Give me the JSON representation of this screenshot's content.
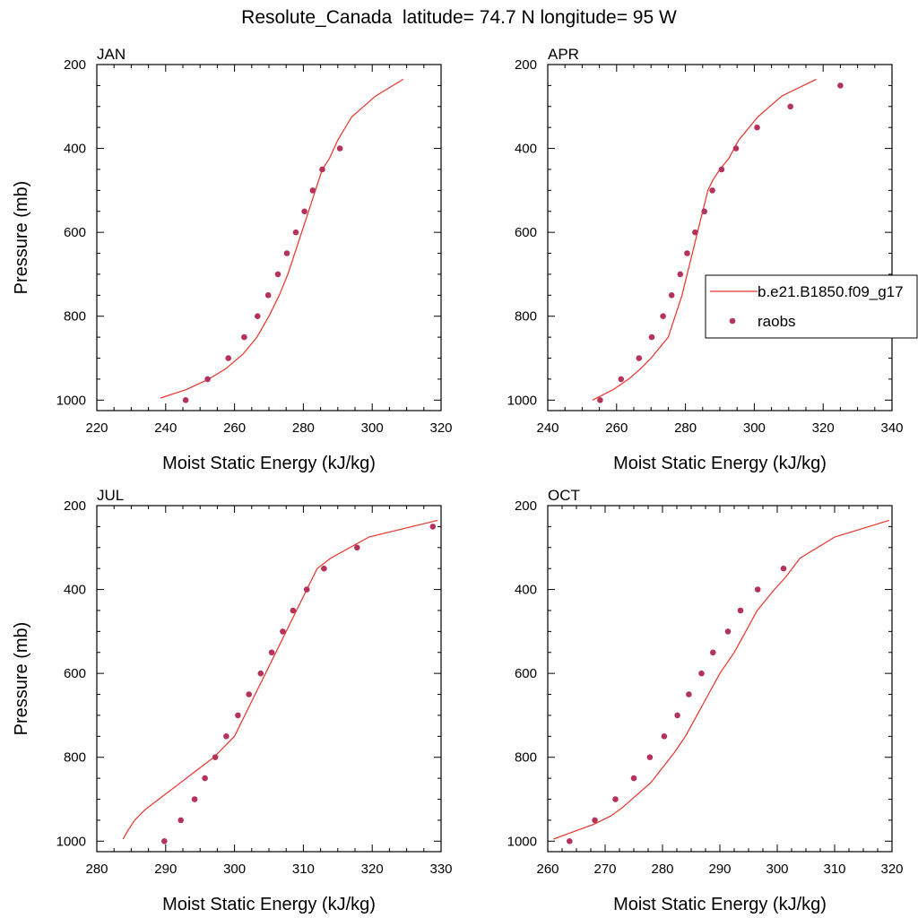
{
  "figure_title": "Resolute_Canada  latitude= 74.7 N longitude= 95 W",
  "colors": {
    "model_line": "#e8322a",
    "raobs_marker": "#b5335a",
    "axis": "#000000"
  },
  "legend": {
    "entries": [
      {
        "label": "b.e21.B1850.f09_g17",
        "kind": "line"
      },
      {
        "label": "raobs",
        "kind": "marker"
      }
    ]
  },
  "chart_data": [
    {
      "type": "line+scatter",
      "panel_title": "JAN",
      "xlabel": "Moist Static Energy (kJ/kg)",
      "ylabel": "Pressure (mb)",
      "xlim": [
        220,
        320
      ],
      "ylim": [
        1025,
        200
      ],
      "xticks": [
        220,
        240,
        260,
        280,
        300,
        320
      ],
      "yticks": [
        200,
        400,
        600,
        800,
        1000
      ],
      "series": [
        {
          "name": "b.e21.B1850.f09_g17",
          "kind": "line",
          "x": [
            238.5,
            246,
            252.5,
            257.5,
            262.5,
            266.5,
            270,
            273,
            275.5,
            277.5,
            279.5,
            281.5,
            283.5,
            285.5,
            287.5,
            290,
            294,
            301,
            309
          ],
          "y": [
            995,
            975,
            950,
            925,
            890,
            850,
            800,
            750,
            700,
            650,
            600,
            550,
            500,
            450,
            425,
            380,
            325,
            275,
            235
          ]
        },
        {
          "name": "raobs",
          "kind": "scatter",
          "x": [
            245.8,
            252.2,
            258.2,
            262.8,
            266.7,
            269.8,
            272.6,
            275.2,
            277.8,
            280.3,
            282.7,
            285.5,
            290.6
          ],
          "y": [
            1000,
            950,
            900,
            850,
            800,
            750,
            700,
            650,
            600,
            550,
            500,
            450,
            400
          ]
        }
      ]
    },
    {
      "type": "line+scatter",
      "panel_title": "APR",
      "xlabel": "Moist Static Energy (kJ/kg)",
      "ylabel": "",
      "xlim": [
        240,
        340
      ],
      "ylim": [
        1025,
        200
      ],
      "xticks": [
        240,
        260,
        280,
        300,
        320,
        340
      ],
      "yticks": [
        200,
        400,
        600,
        800,
        1000
      ],
      "series": [
        {
          "name": "b.e21.B1850.f09_g17",
          "kind": "line",
          "x": [
            253,
            259,
            263.5,
            267,
            270,
            272.5,
            275,
            277,
            279,
            280.5,
            282,
            283.5,
            285,
            286.5,
            288,
            290,
            292.5,
            295.5,
            301,
            308,
            318
          ],
          "y": [
            1000,
            975,
            950,
            925,
            900,
            875,
            850,
            800,
            750,
            700,
            650,
            600,
            550,
            500,
            475,
            450,
            425,
            380,
            325,
            275,
            235
          ]
        },
        {
          "name": "raobs",
          "kind": "scatter",
          "x": [
            255.2,
            261.3,
            266.5,
            270.2,
            273.5,
            276,
            278.5,
            280.5,
            282.8,
            285.5,
            287.8,
            290.5,
            294.7,
            300.8,
            310.5,
            325
          ],
          "y": [
            1000,
            950,
            900,
            850,
            800,
            750,
            700,
            650,
            600,
            550,
            500,
            450,
            400,
            350,
            300,
            250
          ]
        }
      ]
    },
    {
      "type": "line+scatter",
      "panel_title": "JUL",
      "xlabel": "Moist Static Energy (kJ/kg)",
      "ylabel": "Pressure (mb)",
      "xlim": [
        280,
        330
      ],
      "ylim": [
        1025,
        200
      ],
      "xticks": [
        280,
        290,
        300,
        310,
        320,
        330
      ],
      "yticks": [
        200,
        400,
        600,
        800,
        1000
      ],
      "series": [
        {
          "name": "b.e21.B1850.f09_g17",
          "kind": "line",
          "x": [
            283.8,
            284.5,
            285.5,
            287,
            289,
            291,
            293,
            295,
            297,
            298.5,
            300,
            301.5,
            303,
            304.5,
            306,
            307.5,
            309,
            310.5,
            312,
            314,
            319.5,
            329.5
          ],
          "y": [
            995,
            975,
            950,
            925,
            900,
            875,
            850,
            825,
            800,
            775,
            750,
            700,
            650,
            600,
            550,
            500,
            450,
            400,
            350,
            325,
            275,
            235
          ]
        },
        {
          "name": "raobs",
          "kind": "scatter",
          "x": [
            289.8,
            292.2,
            294.2,
            295.7,
            297.2,
            298.8,
            300.5,
            302.1,
            303.8,
            305.4,
            307,
            308.5,
            310.5,
            313,
            317.8,
            328.8
          ],
          "y": [
            1000,
            950,
            900,
            850,
            800,
            750,
            700,
            650,
            600,
            550,
            500,
            450,
            400,
            350,
            300,
            250
          ]
        }
      ]
    },
    {
      "type": "line+scatter",
      "panel_title": "OCT",
      "xlabel": "Moist Static Energy (kJ/kg)",
      "ylabel": "",
      "xlim": [
        260,
        320
      ],
      "ylim": [
        1025,
        200
      ],
      "xticks": [
        260,
        270,
        280,
        290,
        300,
        310,
        320
      ],
      "yticks": [
        200,
        400,
        600,
        800,
        1000
      ],
      "series": [
        {
          "name": "b.e21.B1850.f09_g17",
          "kind": "line",
          "x": [
            261,
            265,
            268,
            271,
            273,
            275.5,
            278,
            280,
            282,
            284,
            286,
            288,
            290,
            292.5,
            294.5,
            296.5,
            299.5,
            301.5,
            304,
            310,
            319.5
          ],
          "y": [
            995,
            975,
            960,
            940,
            920,
            890,
            860,
            825,
            790,
            750,
            700,
            650,
            600,
            550,
            500,
            450,
            400,
            370,
            325,
            275,
            235
          ]
        },
        {
          "name": "raobs",
          "kind": "scatter",
          "x": [
            263.8,
            268.2,
            271.8,
            275,
            277.8,
            280.3,
            282.6,
            284.6,
            286.8,
            288.8,
            291.4,
            293.6,
            296.6,
            301.1
          ],
          "y": [
            1000,
            950,
            900,
            850,
            800,
            750,
            700,
            650,
            600,
            550,
            500,
            450,
            400,
            350
          ]
        }
      ]
    }
  ]
}
